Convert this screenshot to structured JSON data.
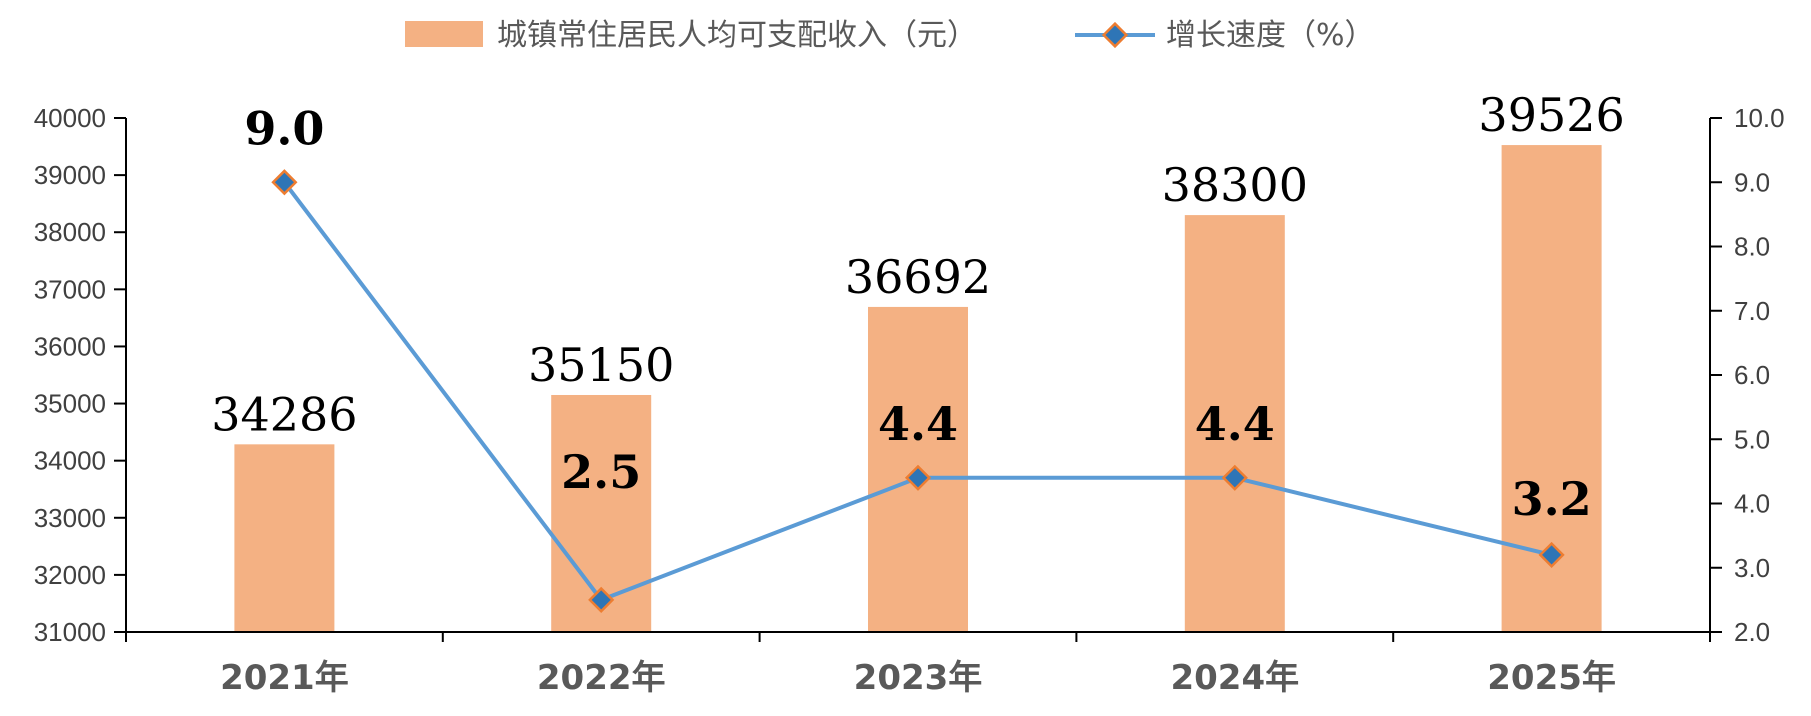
{
  "chart_data": {
    "type": "bar",
    "categories": [
      "2021年",
      "2022年",
      "2023年",
      "2024年",
      "2025年"
    ],
    "series": [
      {
        "name": "城镇常住居民人均可支配收入（元）",
        "type": "bar",
        "axis": "left",
        "values": [
          34286,
          35150,
          36692,
          38300,
          39526
        ]
      },
      {
        "name": "增长速度（%）",
        "type": "line",
        "axis": "right",
        "values": [
          9.0,
          2.5,
          4.4,
          4.4,
          3.2
        ]
      }
    ],
    "bar_labels": [
      "34286",
      "35150",
      "36692",
      "38300",
      "39526"
    ],
    "line_labels": [
      "9.0",
      "2.5",
      "4.4",
      "4.4",
      "3.2"
    ],
    "y_left": {
      "ylim": [
        31000,
        40000
      ],
      "ticks": [
        "31000",
        "32000",
        "33000",
        "34000",
        "35000",
        "36000",
        "37000",
        "38000",
        "39000",
        "40000"
      ]
    },
    "y_right": {
      "ylim": [
        2.0,
        10.0
      ],
      "ticks": [
        "2.0",
        "3.0",
        "4.0",
        "5.0",
        "6.0",
        "7.0",
        "8.0",
        "9.0",
        "10.0"
      ]
    },
    "legend_position": "top-center",
    "grid": false,
    "colors": {
      "bar": "#F4B183",
      "line": "#5B9BD5",
      "marker_fill": "#2E75B6",
      "marker_edge": "#ED7D31",
      "axis": "#000000"
    }
  }
}
